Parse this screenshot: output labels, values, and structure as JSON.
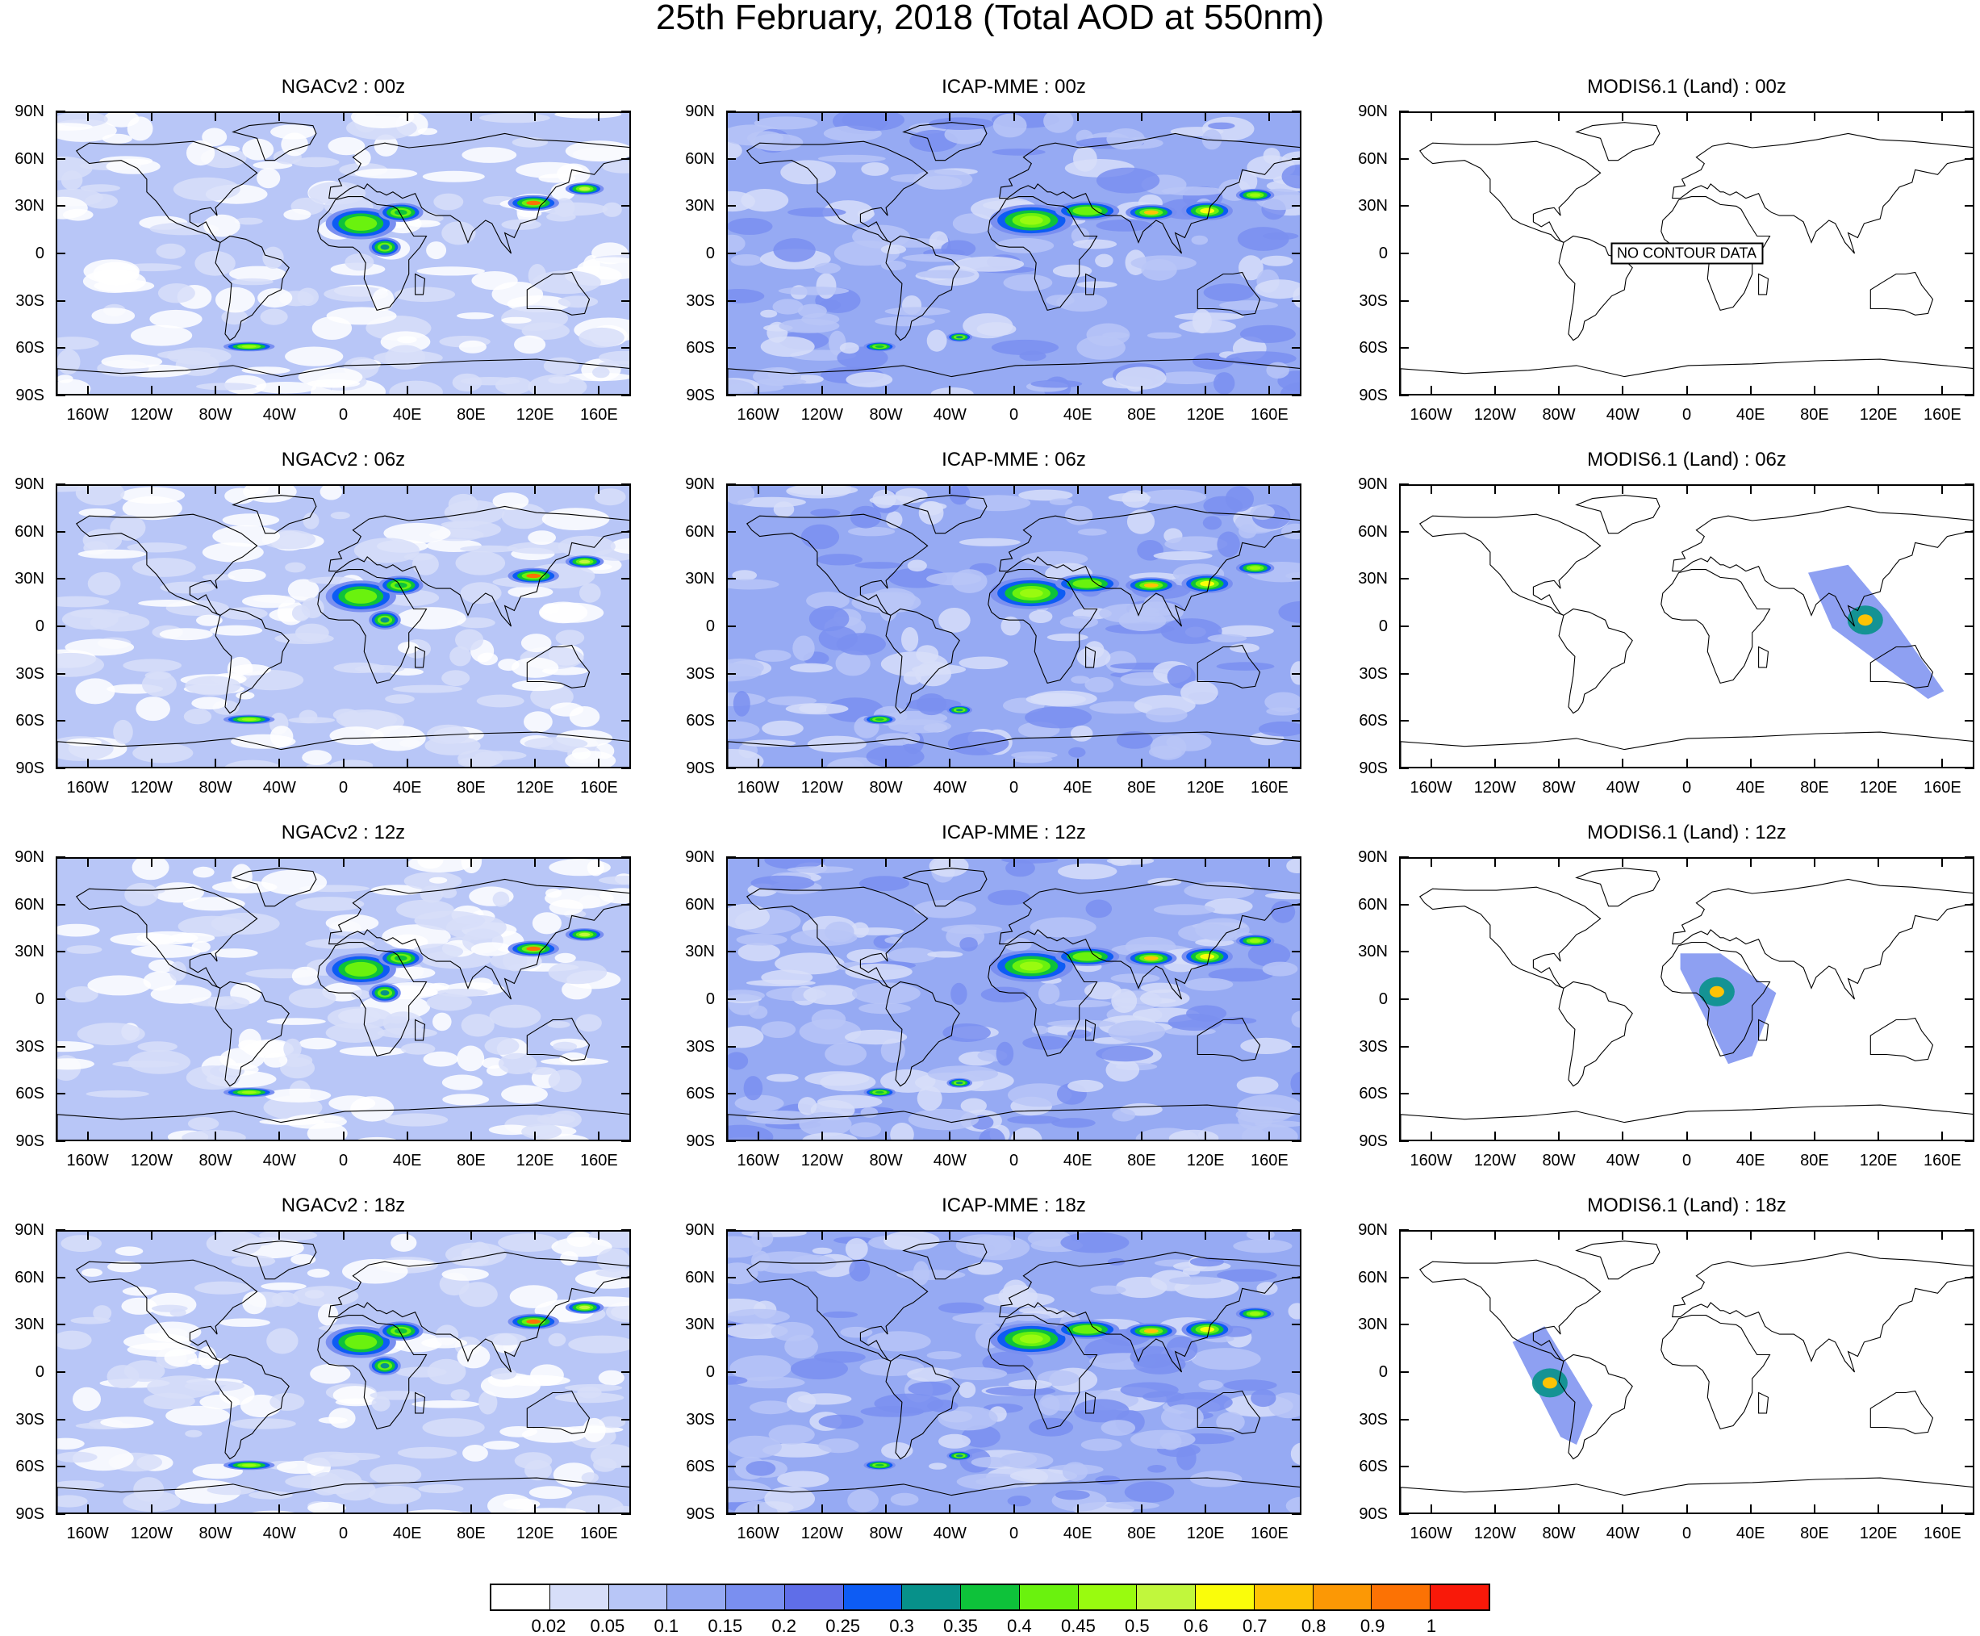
{
  "title": "25th February, 2018 (Total AOD at 550nm)",
  "lat_labels": [
    "90N",
    "60N",
    "30N",
    "0",
    "30S",
    "60S",
    "90S"
  ],
  "lon_labels": [
    "160W",
    "120W",
    "80W",
    "40W",
    "0",
    "40E",
    "80E",
    "120E",
    "160E"
  ],
  "panels": [
    {
      "title": "NGACv2 : 00z",
      "model": "NGACv2",
      "time": "00z"
    },
    {
      "title": "ICAP-MME : 00z",
      "model": "ICAP-MME",
      "time": "00z"
    },
    {
      "title": "MODIS6.1 (Land) : 00z",
      "model": "MODIS6.1 (Land)",
      "time": "00z",
      "note": "NO CONTOUR DATA"
    },
    {
      "title": "NGACv2 : 06z",
      "model": "NGACv2",
      "time": "06z"
    },
    {
      "title": "ICAP-MME : 06z",
      "model": "ICAP-MME",
      "time": "06z"
    },
    {
      "title": "MODIS6.1 (Land) : 06z",
      "model": "MODIS6.1 (Land)",
      "time": "06z"
    },
    {
      "title": "NGACv2 : 12z",
      "model": "NGACv2",
      "time": "12z"
    },
    {
      "title": "ICAP-MME : 12z",
      "model": "ICAP-MME",
      "time": "12z"
    },
    {
      "title": "MODIS6.1 (Land) : 12z",
      "model": "MODIS6.1 (Land)",
      "time": "12z"
    },
    {
      "title": "NGACv2 : 18z",
      "model": "NGACv2",
      "time": "18z"
    },
    {
      "title": "ICAP-MME : 18z",
      "model": "ICAP-MME",
      "time": "18z"
    },
    {
      "title": "MODIS6.1 (Land) : 18z",
      "model": "MODIS6.1 (Land)",
      "time": "18z"
    }
  ],
  "colorbar": {
    "labels": [
      "0.02",
      "0.05",
      "0.1",
      "0.15",
      "0.2",
      "0.25",
      "0.3",
      "0.35",
      "0.4",
      "0.45",
      "0.5",
      "0.6",
      "0.7",
      "0.8",
      "0.9",
      "1"
    ],
    "colors": [
      "#ffffff",
      "#d7def9",
      "#b8c6f7",
      "#96aaf3",
      "#7a8ff0",
      "#5f6ee8",
      "#0d5cf4",
      "#07918a",
      "#0ec23a",
      "#6af20e",
      "#99fb0f",
      "#c1f73c",
      "#fafd0a",
      "#fdc305",
      "#fc9805",
      "#fc7204",
      "#f91909"
    ]
  }
}
